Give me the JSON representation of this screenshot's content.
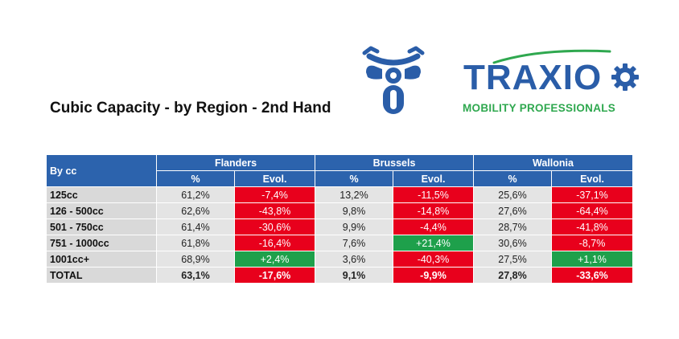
{
  "title": "Cubic Capacity - by Region - 2nd Hand",
  "logo": {
    "word": "TRAXIO",
    "subtitle": "MOBILITY PROFESSIONALS"
  },
  "colors": {
    "header": "#2c63ad",
    "negative": "#e8001c",
    "positive": "#1ea04b",
    "logo_blue": "#2a5da8",
    "logo_green": "#2fa84f"
  },
  "table": {
    "row_header": "By cc",
    "regions": [
      "Flanders",
      "Brussels",
      "Wallonia"
    ],
    "sub_headers": [
      "%",
      "Evol."
    ],
    "rows": [
      {
        "label": "125cc",
        "cells": [
          {
            "pct": "61,2%",
            "evol": "-7,4%",
            "trend": "neg"
          },
          {
            "pct": "13,2%",
            "evol": "-11,5%",
            "trend": "neg"
          },
          {
            "pct": "25,6%",
            "evol": "-37,1%",
            "trend": "neg"
          }
        ]
      },
      {
        "label": "126 - 500cc",
        "cells": [
          {
            "pct": "62,6%",
            "evol": "-43,8%",
            "trend": "neg"
          },
          {
            "pct": "9,8%",
            "evol": "-14,8%",
            "trend": "neg"
          },
          {
            "pct": "27,6%",
            "evol": "-64,4%",
            "trend": "neg"
          }
        ]
      },
      {
        "label": "501 - 750cc",
        "cells": [
          {
            "pct": "61,4%",
            "evol": "-30,6%",
            "trend": "neg"
          },
          {
            "pct": "9,9%",
            "evol": "-4,4%",
            "trend": "neg"
          },
          {
            "pct": "28,7%",
            "evol": "-41,8%",
            "trend": "neg"
          }
        ]
      },
      {
        "label": "751 - 1000cc",
        "cells": [
          {
            "pct": "61,8%",
            "evol": "-16,4%",
            "trend": "neg"
          },
          {
            "pct": "7,6%",
            "evol": "+21,4%",
            "trend": "pos"
          },
          {
            "pct": "30,6%",
            "evol": "-8,7%",
            "trend": "neg"
          }
        ]
      },
      {
        "label": "1001cc+",
        "cells": [
          {
            "pct": "68,9%",
            "evol": "+2,4%",
            "trend": "pos"
          },
          {
            "pct": "3,6%",
            "evol": "-40,3%",
            "trend": "neg"
          },
          {
            "pct": "27,5%",
            "evol": "+1,1%",
            "trend": "pos"
          }
        ]
      },
      {
        "label": "TOTAL",
        "total": true,
        "cells": [
          {
            "pct": "63,1%",
            "evol": "-17,6%",
            "trend": "neg"
          },
          {
            "pct": "9,1%",
            "evol": "-9,9%",
            "trend": "neg"
          },
          {
            "pct": "27,8%",
            "evol": "-33,6%",
            "trend": "neg"
          }
        ]
      }
    ]
  }
}
